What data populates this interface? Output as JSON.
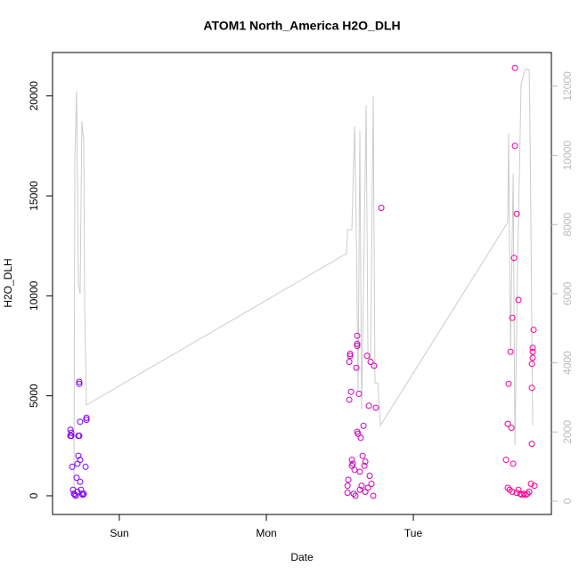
{
  "chart_data": {
    "type": "scatter",
    "title": "ATOM1 North_America H2O_DLH",
    "x_label": "Date",
    "y_label": "H2O_DLH",
    "xlim": [
      -0.4545,
      2.939
    ],
    "xticks": [
      {
        "value": 0,
        "label": "Sun"
      },
      {
        "value": 1,
        "label": "Mon"
      },
      {
        "value": 2,
        "label": "Tue"
      }
    ],
    "ylim": [
      -935,
      22170
    ],
    "yticks": [
      0,
      5000,
      10000,
      15000,
      20000
    ],
    "y2lim": [
      -386,
      12975
    ],
    "y2ticks": [
      0,
      2000,
      4000,
      6000,
      8000,
      10000,
      12000
    ],
    "series": [
      {
        "color": [
          "#7a00ff",
          "#ff0090"
        ],
        "x": [
          -0.333,
          -0.327,
          -0.333,
          -0.327,
          -0.321,
          -0.315,
          -0.309,
          -0.303,
          -0.297,
          -0.291,
          -0.285,
          -0.279,
          -0.279,
          -0.273,
          -0.273,
          -0.267,
          -0.267,
          -0.261,
          -0.255,
          -0.248,
          -0.242,
          -0.23,
          -0.224,
          -0.224,
          -0.273,
          -0.285,
          -0.267,
          1.552,
          1.552,
          1.558,
          1.564,
          1.564,
          1.57,
          1.57,
          1.576,
          1.582,
          1.582,
          1.588,
          1.594,
          1.606,
          1.612,
          1.618,
          1.618,
          1.618,
          1.618,
          1.624,
          1.63,
          1.636,
          1.642,
          1.648,
          1.655,
          1.661,
          1.667,
          1.673,
          1.685,
          1.691,
          1.697,
          1.703,
          1.709,
          1.715,
          1.733,
          1.745,
          1.782,
          1.6,
          1.636,
          1.673,
          1.727,
          2.63,
          2.642,
          2.648,
          2.655,
          2.661,
          2.667,
          2.673,
          2.679,
          2.685,
          2.691,
          2.691,
          2.703,
          2.715,
          2.715,
          2.727,
          2.739,
          2.764,
          2.788,
          2.8,
          2.806,
          2.806,
          2.806,
          2.812,
          2.812,
          2.812,
          2.818,
          2.824,
          2.642,
          2.673,
          2.703,
          2.752,
          2.776
        ],
        "values": [
          3300,
          3150,
          3000,
          3000,
          1450,
          300,
          100,
          50,
          0,
          900,
          1600,
          2000,
          3000,
          5600,
          5700,
          3700,
          1800,
          300,
          100,
          50,
          100,
          1450,
          3800,
          3900,
          3000,
          200,
          700,
          150,
          500,
          800,
          4800,
          6700,
          7000,
          7100,
          5200,
          1500,
          1800,
          1600,
          100,
          0,
          6400,
          7500,
          7600,
          8000,
          3200,
          3100,
          5100,
          1200,
          2900,
          500,
          2000,
          3500,
          1500,
          1700,
          7000,
          400,
          4500,
          1000,
          6700,
          600,
          6500,
          4400,
          14400,
          1300,
          300,
          200,
          0,
          1800,
          3600,
          5600,
          300,
          7200,
          3400,
          8900,
          1600,
          11900,
          17500,
          21400,
          14100,
          9800,
          300,
          100,
          50,
          50,
          200,
          600,
          2600,
          5400,
          6600,
          6900,
          7200,
          7400,
          8300,
          500,
          400,
          200,
          150,
          100,
          100
        ]
      },
      {
        "type": "line",
        "axis": "y2",
        "color": "#cccccc",
        "x": [
          -0.309,
          -0.303,
          -0.291,
          -0.279,
          -0.267,
          -0.255,
          -0.242,
          -0.236,
          -0.224,
          1.545,
          1.552,
          1.564,
          1.582,
          1.6,
          1.612,
          1.624,
          1.636,
          1.648,
          1.661,
          1.679,
          1.691,
          1.709,
          1.727,
          1.739,
          1.758,
          1.776,
          2.642,
          2.648,
          2.661,
          2.679,
          2.691,
          2.709,
          2.733,
          2.758,
          2.788,
          2.794,
          2.812
        ],
        "values": [
          206,
          9860,
          11840,
          6255,
          6000,
          10990,
          10375,
          5740,
          2780,
          7160,
          7850,
          7850,
          7850,
          10840,
          7800,
          3170,
          10710,
          2650,
          6255,
          11455,
          4195,
          4070,
          11710,
          3420,
          3420,
          2190,
          8060,
          10630,
          4325,
          9470,
          1620,
          6770,
          12045,
          12480,
          12480,
          10630,
          2190
        ]
      }
    ]
  }
}
